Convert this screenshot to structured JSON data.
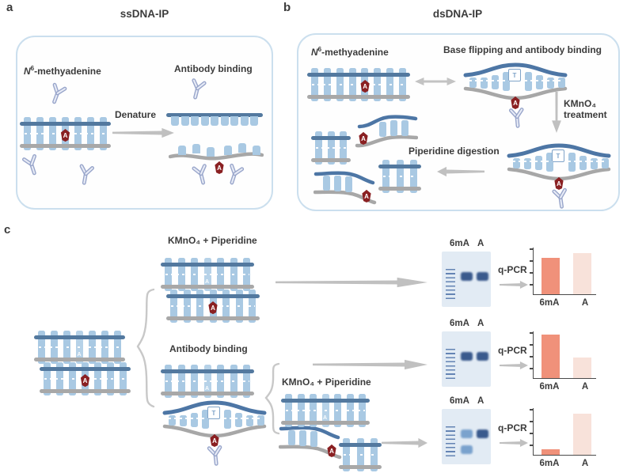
{
  "molecule": {
    "methyl_base": "A",
    "normal_base": "A",
    "flipped_base": "T"
  },
  "panel_a": {
    "label": "a",
    "title": "ssDNA-IP",
    "methyl_n": "N",
    "methyl_sup": "6",
    "methyl_rest": "-methyadenine",
    "denature": "Denature",
    "antibody_binding": "Antibody binding"
  },
  "panel_b": {
    "label": "b",
    "title": "dsDNA-IP",
    "methyl_n": "N",
    "methyl_sup": "6",
    "methyl_rest": "-methyadenine",
    "base_flipping": "Base flipping and antibody binding",
    "kmno4_line1": "KMnO₄",
    "kmno4_line2": "treatment",
    "piperidine": "Piperidine digestion"
  },
  "panel_c": {
    "label": "c",
    "branch1": "KMnO₄ + Piperidine",
    "branch2": "Antibody binding",
    "branch3": "KMnO₄ + Piperidine",
    "qpcr": "q-PCR",
    "gel_lanes": [
      "6mA",
      "A"
    ]
  },
  "gels": [
    {
      "bands": [
        {
          "lane": 0,
          "row": 0,
          "shade": "dark"
        },
        {
          "lane": 1,
          "row": 0,
          "shade": "dark"
        }
      ]
    },
    {
      "bands": [
        {
          "lane": 0,
          "row": 0,
          "shade": "dark"
        },
        {
          "lane": 1,
          "row": 0,
          "shade": "dark"
        }
      ]
    },
    {
      "bands": [
        {
          "lane": 0,
          "row": 0,
          "shade": "light"
        },
        {
          "lane": 1,
          "row": 0,
          "shade": "dark"
        },
        {
          "lane": 0,
          "row": 1,
          "shade": "light"
        }
      ]
    }
  ],
  "chart_data": [
    {
      "type": "bar",
      "categories": [
        "6mA",
        "A"
      ],
      "values": [
        78,
        88
      ],
      "colors": [
        "#f0917a",
        "#f8e2da"
      ],
      "title": "",
      "xlabel": "",
      "ylabel": "",
      "ylim": [
        0,
        100
      ],
      "grid": false,
      "legend": false
    },
    {
      "type": "bar",
      "categories": [
        "6mA",
        "A"
      ],
      "values": [
        93,
        44
      ],
      "colors": [
        "#f0917a",
        "#f8e2da"
      ],
      "title": "",
      "xlabel": "",
      "ylabel": "",
      "ylim": [
        0,
        100
      ],
      "grid": false,
      "legend": false
    },
    {
      "type": "bar",
      "categories": [
        "6mA",
        "A"
      ],
      "values": [
        12,
        88
      ],
      "colors": [
        "#f0917a",
        "#f8e2da"
      ],
      "title": "",
      "xlabel": "",
      "ylabel": "",
      "ylim": [
        0,
        100
      ],
      "grid": false,
      "legend": false
    }
  ],
  "colors": {
    "bar_6mA": "#f0917a",
    "bar_A": "#f8e2da",
    "strand_top": "#53799f",
    "strand_bottom": "#a8a8a8",
    "base_pair": "#a9c9e3",
    "methyl_badge": "#8a2022",
    "gel_bg": "#e2ebf4",
    "gel_band": "#3a5a8d"
  }
}
